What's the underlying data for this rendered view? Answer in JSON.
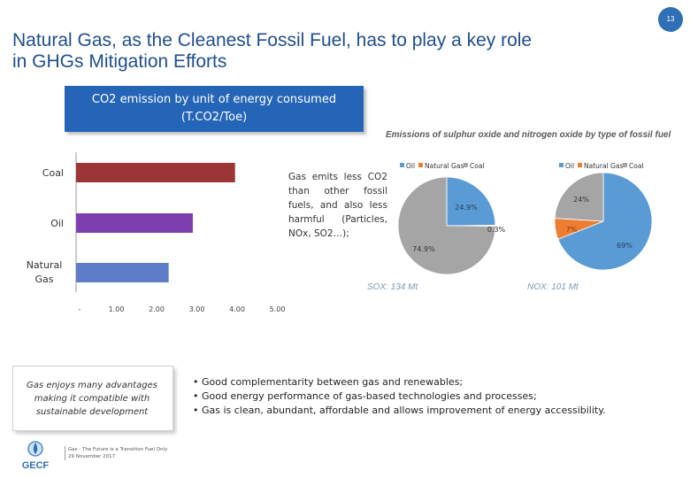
{
  "page": {
    "title_line1": "Natural Gas, as the Cleanest Fossil Fuel, has to play a key role",
    "title_line2": "in GHGs Mitigation Efforts",
    "page_number": "13"
  },
  "colors": {
    "title": "#1f4e8c",
    "banner": "#2565b8",
    "coal": "#9b3536",
    "oil": "#7d3fb0",
    "natural_gas": "#5e7cc7",
    "pie_oil": "#5b9bd5",
    "pie_natural_gas": "#ed7d31",
    "pie_coal": "#a5a5a5"
  },
  "co2_banner": {
    "line1": "CO2 emission by unit of energy consumed",
    "line2": "(T.CO2/Toe)"
  },
  "note_text": "Gas emits less CO2 than other fossil fuels, and also less harmful (Particles, NOx, SO2…);",
  "chart_data": [
    {
      "type": "bar",
      "orientation": "horizontal",
      "title": "CO2 emission by unit of energy consumed (T.CO2/Toe)",
      "categories": [
        "Coal",
        "Oil",
        "Natural Gas"
      ],
      "values": [
        3.95,
        2.9,
        2.3
      ],
      "xlim": [
        0,
        5
      ],
      "xticks": [
        "-",
        "1.00",
        "2.00",
        "3.00",
        "4.00",
        "5.00"
      ],
      "xlabel": "",
      "ylabel": ""
    },
    {
      "type": "pie",
      "title": "Emissions of sulphur oxide and nitrogen oxide by type of fossil fuel",
      "caption": "SOX: 134 Mt",
      "legend": [
        "Oil",
        "Natural Gas",
        "Coal"
      ],
      "values": [
        24.9,
        0.3,
        74.9
      ],
      "labels": [
        "24.9%",
        "0.3%",
        "74.9%"
      ]
    },
    {
      "type": "pie",
      "caption": "NOX: 101 Mt",
      "legend": [
        "Oil",
        "Natural Gas",
        "Coal"
      ],
      "values": [
        69,
        7,
        24
      ],
      "labels": [
        "69%",
        "7%",
        "24%"
      ]
    }
  ],
  "advantages_box": "Gas enjoys many advantages making it compatible with sustainable development",
  "bullets": [
    "• Good complementarity between gas and renewables;",
    "• Good energy performance of gas-based technologies and processes;",
    "• Gas is clean, abundant, affordable and allows improvement of energy accessibility."
  ],
  "logo_text": "GECF",
  "footer": {
    "line1": "Gas - The Future is a Transition Fuel Only",
    "line2": "29 November 2017"
  }
}
